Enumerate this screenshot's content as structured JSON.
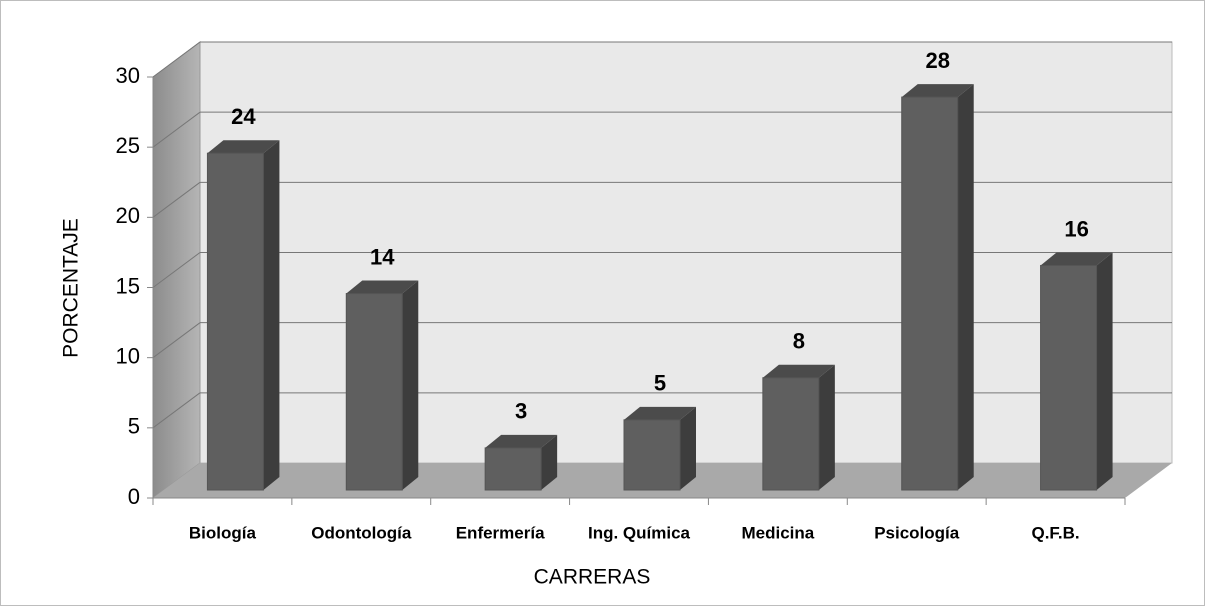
{
  "chart_data": {
    "type": "bar3d",
    "categories": [
      "Biología",
      "Odontología",
      "Enfermería",
      "Ing. Química",
      "Medicina",
      "Psicología",
      "Q.F.B."
    ],
    "values": [
      24,
      14,
      3,
      5,
      8,
      28,
      16
    ],
    "color": "#5f5f5f",
    "ylim": [
      0,
      30
    ],
    "yticks": [
      0,
      5,
      10,
      15,
      20,
      25,
      30
    ],
    "grid": true,
    "xlabel": "CARRERAS",
    "ylabel": "PORCENTAJE"
  }
}
